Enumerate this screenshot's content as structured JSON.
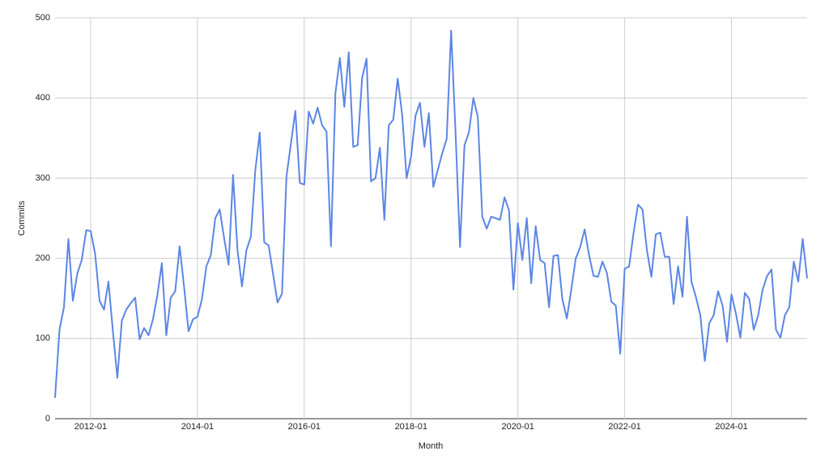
{
  "chart_data": {
    "type": "line",
    "x_label": "Month",
    "y_label": "Commits",
    "x": [
      "2011-05",
      "2011-06",
      "2011-07",
      "2011-08",
      "2011-09",
      "2011-10",
      "2011-11",
      "2011-12",
      "2012-01",
      "2012-02",
      "2012-03",
      "2012-04",
      "2012-05",
      "2012-06",
      "2012-07",
      "2012-08",
      "2012-09",
      "2012-10",
      "2012-11",
      "2012-12",
      "2013-01",
      "2013-02",
      "2013-03",
      "2013-04",
      "2013-05",
      "2013-06",
      "2013-07",
      "2013-08",
      "2013-09",
      "2013-10",
      "2013-11",
      "2013-12",
      "2014-01",
      "2014-02",
      "2014-03",
      "2014-04",
      "2014-05",
      "2014-06",
      "2014-07",
      "2014-08",
      "2014-09",
      "2014-10",
      "2014-11",
      "2014-12",
      "2015-01",
      "2015-02",
      "2015-03",
      "2015-04",
      "2015-05",
      "2015-06",
      "2015-07",
      "2015-08",
      "2015-09",
      "2015-10",
      "2015-11",
      "2015-12",
      "2016-01",
      "2016-02",
      "2016-03",
      "2016-04",
      "2016-05",
      "2016-06",
      "2016-07",
      "2016-08",
      "2016-09",
      "2016-10",
      "2016-11",
      "2016-12",
      "2017-01",
      "2017-02",
      "2017-03",
      "2017-04",
      "2017-05",
      "2017-06",
      "2017-07",
      "2017-08",
      "2017-09",
      "2017-10",
      "2017-11",
      "2017-12",
      "2018-01",
      "2018-02",
      "2018-03",
      "2018-04",
      "2018-05",
      "2018-06",
      "2018-07",
      "2018-08",
      "2018-09",
      "2018-10",
      "2018-11",
      "2018-12",
      "2019-01",
      "2019-02",
      "2019-03",
      "2019-04",
      "2019-05",
      "2019-06",
      "2019-07",
      "2019-08",
      "2019-09",
      "2019-10",
      "2019-11",
      "2019-12",
      "2020-01",
      "2020-02",
      "2020-03",
      "2020-04",
      "2020-05",
      "2020-06",
      "2020-07",
      "2020-08",
      "2020-09",
      "2020-10",
      "2020-11",
      "2020-12",
      "2021-01",
      "2021-02",
      "2021-03",
      "2021-04",
      "2021-05",
      "2021-06",
      "2021-07",
      "2021-08",
      "2021-09",
      "2021-10",
      "2021-11",
      "2021-12",
      "2022-01",
      "2022-02",
      "2022-03",
      "2022-04",
      "2022-05",
      "2022-06",
      "2022-07",
      "2022-08",
      "2022-09",
      "2022-10",
      "2022-11",
      "2022-12",
      "2023-01",
      "2023-02",
      "2023-03",
      "2023-04",
      "2023-05",
      "2023-06",
      "2023-07",
      "2023-08",
      "2023-09",
      "2023-10",
      "2023-11",
      "2023-12",
      "2024-01",
      "2024-02",
      "2024-03",
      "2024-04",
      "2024-05",
      "2024-06",
      "2024-07",
      "2024-08",
      "2024-09",
      "2024-10",
      "2024-11",
      "2024-12",
      "2025-01",
      "2025-02",
      "2025-03",
      "2025-04",
      "2025-05",
      "2025-06"
    ],
    "values": [
      26,
      111,
      139,
      224,
      147,
      181,
      198,
      235,
      234,
      206,
      147,
      136,
      171,
      109,
      51,
      122,
      136,
      144,
      151,
      99,
      113,
      104,
      124,
      154,
      194,
      104,
      151,
      159,
      215,
      164,
      109,
      124,
      127,
      149,
      190,
      204,
      250,
      261,
      225,
      192,
      304,
      210,
      165,
      210,
      227,
      310,
      357,
      220,
      216,
      180,
      145,
      156,
      302,
      343,
      384,
      294,
      292,
      383,
      368,
      388,
      366,
      358,
      215,
      406,
      450,
      389,
      457,
      339,
      341,
      425,
      449,
      296,
      300,
      338,
      248,
      366,
      373,
      424,
      379,
      300,
      327,
      378,
      394,
      339,
      381,
      289,
      310,
      331,
      349,
      484,
      356,
      214,
      341,
      357,
      400,
      376,
      252,
      237,
      252,
      250,
      248,
      276,
      260,
      161,
      244,
      198,
      250,
      169,
      240,
      198,
      194,
      139,
      203,
      204,
      149,
      125,
      161,
      200,
      214,
      236,
      204,
      178,
      177,
      196,
      182,
      146,
      141,
      81,
      187,
      190,
      232,
      267,
      261,
      210,
      177,
      230,
      232,
      202,
      202,
      143,
      190,
      152,
      252,
      171,
      152,
      129,
      72,
      119,
      129,
      159,
      141,
      96,
      155,
      131,
      101,
      157,
      149,
      111,
      129,
      161,
      178,
      186,
      111,
      101,
      129,
      139,
      196,
      171,
      224,
      175
    ],
    "color": "#5b86e5",
    "xlim": [
      "2011-05",
      "2025-06"
    ],
    "xticks": [
      "2012-01",
      "2014-01",
      "2016-01",
      "2018-01",
      "2020-01",
      "2022-01",
      "2024-01"
    ],
    "ylim": [
      0,
      500
    ],
    "yticks": [
      0,
      100,
      200,
      300,
      400,
      500
    ],
    "grid": true
  }
}
